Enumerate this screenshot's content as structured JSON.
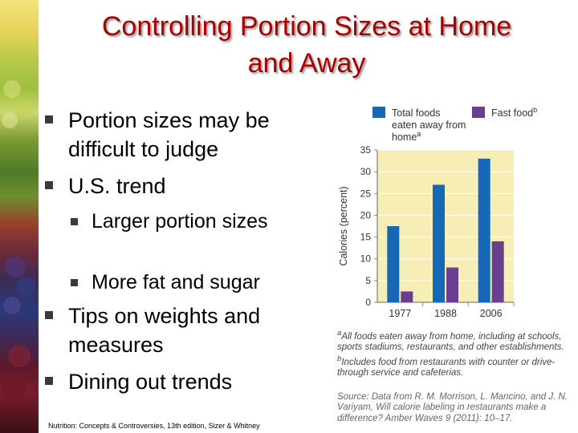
{
  "slide": {
    "title_line1": "Controlling Portion Sizes at Home",
    "title_line2": "and Away",
    "bullets": [
      "Portion sizes may be difficult to judge",
      "U.S. trend",
      "Tips on weights and measures",
      "Dining out trends"
    ],
    "sub_bullets": [
      "Larger portion sizes",
      "More fat and sugar"
    ],
    "footer": "Nutrition: Concepts & Controversies, 13th edition, Sizer & Whitney"
  },
  "chart_data": {
    "type": "bar",
    "categories": [
      "1977",
      "1988",
      "2006"
    ],
    "series": [
      {
        "name": "Total foods eaten away from home",
        "superscript": "a",
        "values": [
          17.5,
          27,
          33
        ],
        "color": "#1667b5"
      },
      {
        "name": "Fast food",
        "superscript": "b",
        "values": [
          2.5,
          8,
          14
        ],
        "color": "#6a3f8f"
      }
    ],
    "ylabel": "Calories (percent)",
    "yticks": [
      0,
      5,
      10,
      15,
      20,
      25,
      30,
      35
    ],
    "ylim": [
      0,
      35
    ],
    "plot_background": "#f6eeb4",
    "gridlines": true,
    "legend_position": "top"
  },
  "notes": {
    "a_marker": "a",
    "a_text": "All foods eaten away from home, including at schools, sports stadiums, restaurants, and other establishments.",
    "b_marker": "b",
    "b_text": "Includes food from restaurants with counter or drive-through service and cafeterias.",
    "source": "Source: Data from R. M. Morrison, L. Mancino, and J. N. Variyam, Will calorie labeling in restaurants make a difference? Amber Waves 9 (2011): 10–17."
  }
}
